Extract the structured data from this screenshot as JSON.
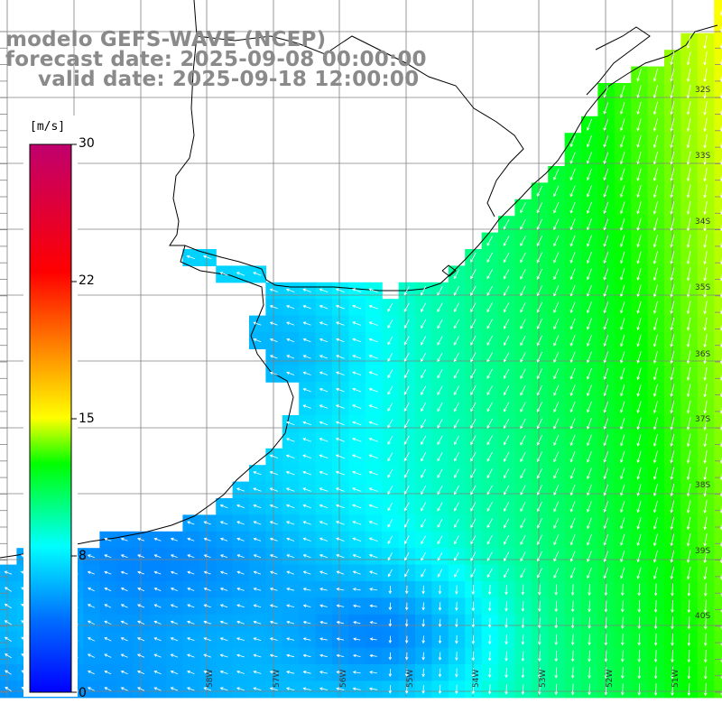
{
  "title": {
    "model": "modelo GEFS-WAVE (NCEP)",
    "forecast": "forecast date: 2025-09-08 00:00:00",
    "valid": "valid date: 2025-09-18 12:00:00"
  },
  "colorbar": {
    "unit": "[m/s]",
    "ticks": [
      "30",
      "22",
      "15",
      "8",
      "0"
    ],
    "tick_values": [
      30,
      22,
      15,
      8,
      0
    ],
    "range": [
      0,
      30
    ],
    "colors": [
      "#0000ff",
      "#00aaff",
      "#00ffff",
      "#00ff00",
      "#ffff00",
      "#ff8000",
      "#ff0000",
      "#c0006a"
    ]
  },
  "map": {
    "variable": "wind speed and direction",
    "lat_labels": [
      "32S",
      "33S",
      "34S",
      "35S",
      "36S",
      "37S",
      "38S",
      "39S",
      "40S"
    ],
    "lon_labels": [
      "58W",
      "57W",
      "56W",
      "55W",
      "54W",
      "53W",
      "52W",
      "51W"
    ],
    "lon_range": [
      -61,
      -50
    ],
    "lat_range": [
      -41,
      -31
    ],
    "colors": {
      "land": "#ffffff",
      "grid": "#808080",
      "coast": "#000000",
      "arrows": "#ffffff"
    }
  }
}
